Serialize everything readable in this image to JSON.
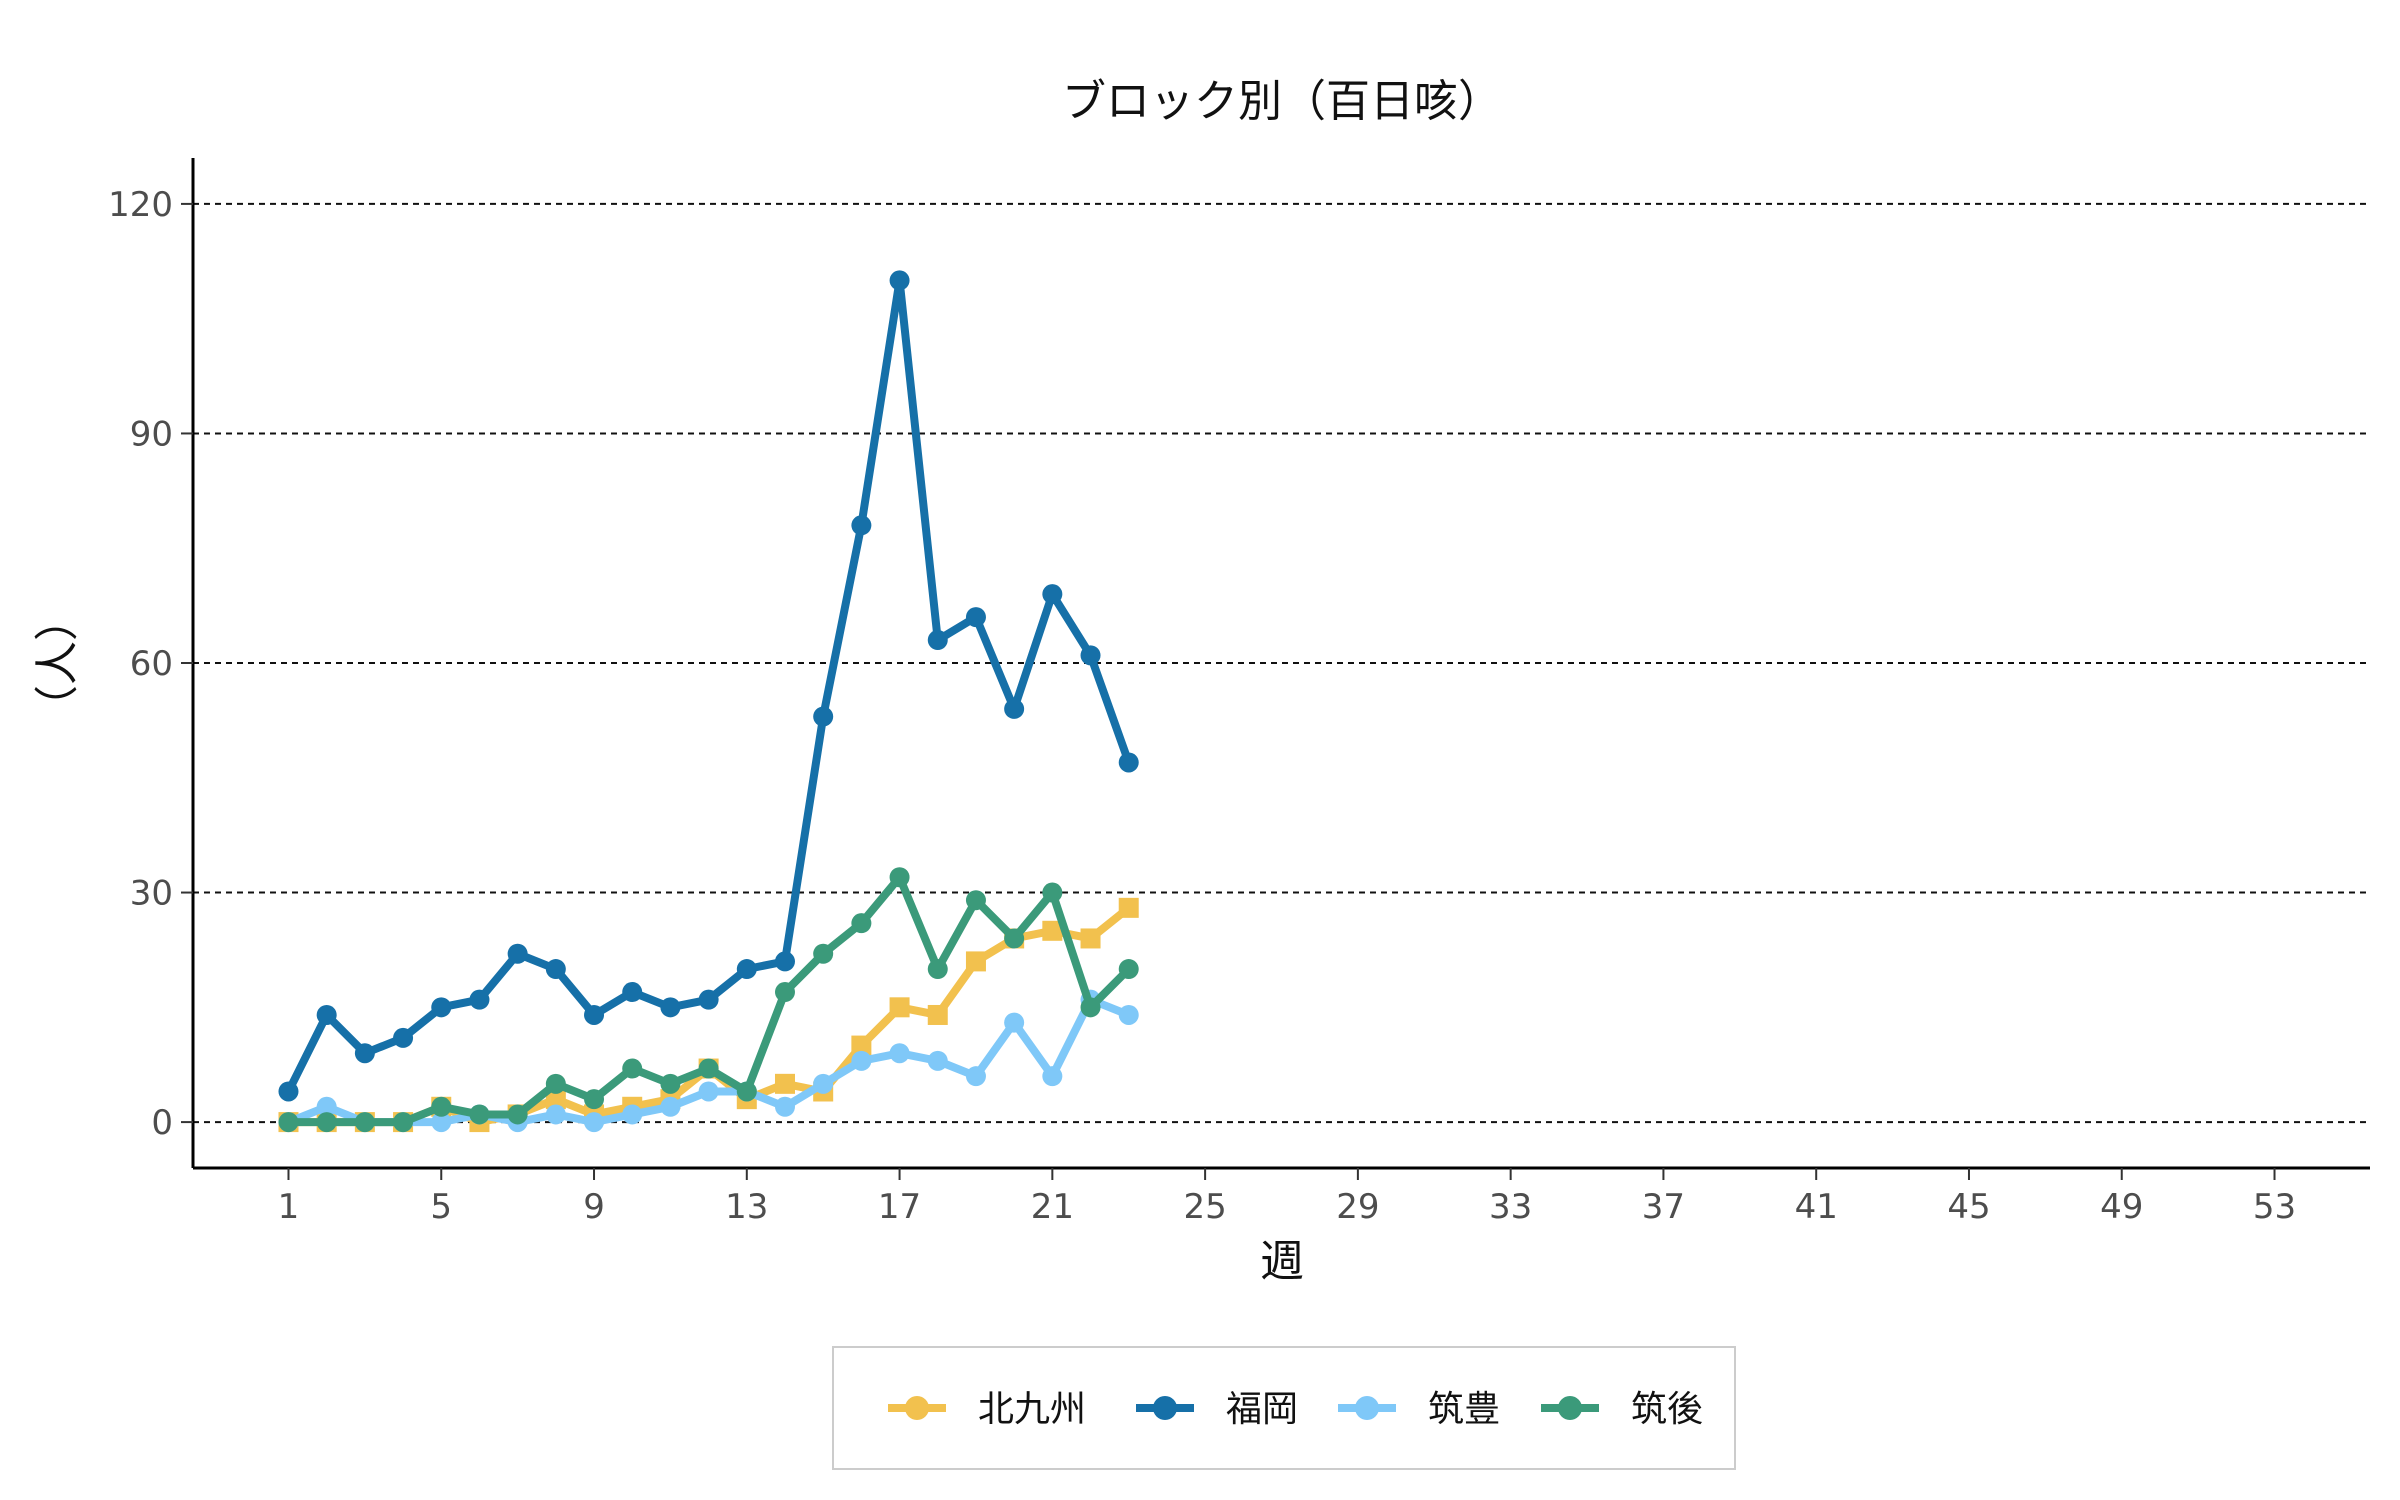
{
  "chart_data": {
    "type": "line",
    "title": "ブロック別（百日咳）",
    "xlabel": "週",
    "ylabel": "（人）",
    "x_ticks": [
      1,
      5,
      9,
      13,
      17,
      21,
      25,
      29,
      33,
      37,
      41,
      45,
      49,
      53
    ],
    "y_ticks": [
      0,
      30,
      60,
      90,
      120
    ],
    "xlim": [
      -1.5,
      55.5
    ],
    "ylim": [
      -6,
      126
    ],
    "grid": "horizontal dashed",
    "legend_position": "bottom",
    "x": [
      1,
      2,
      3,
      4,
      5,
      6,
      7,
      8,
      9,
      10,
      11,
      12,
      13,
      14,
      15,
      16,
      17,
      18,
      19,
      20,
      21,
      22,
      23
    ],
    "series": [
      {
        "name": "北九州",
        "color": "#f2c14e",
        "marker": "square",
        "values": [
          0,
          0,
          0,
          0,
          2,
          0,
          1,
          3,
          1,
          2,
          3,
          7,
          3,
          5,
          4,
          10,
          15,
          14,
          21,
          24,
          25,
          24,
          28
        ]
      },
      {
        "name": "福岡",
        "color": "#1670a8",
        "marker": "circle",
        "values": [
          4,
          14,
          9,
          11,
          15,
          16,
          22,
          20,
          14,
          17,
          15,
          16,
          20,
          21,
          53,
          78,
          110,
          63,
          66,
          54,
          69,
          61,
          47
        ]
      },
      {
        "name": "筑豊",
        "color": "#7fc8f8",
        "marker": "circle",
        "values": [
          0,
          2,
          0,
          0,
          0,
          1,
          0,
          1,
          0,
          1,
          2,
          4,
          4,
          2,
          5,
          8,
          9,
          8,
          6,
          13,
          6,
          16,
          14
        ]
      },
      {
        "name": "筑後",
        "color": "#3b9a7a",
        "marker": "circle",
        "values": [
          0,
          0,
          0,
          0,
          2,
          1,
          1,
          5,
          3,
          7,
          5,
          7,
          4,
          17,
          22,
          26,
          32,
          20,
          29,
          24,
          30,
          15,
          20
        ]
      }
    ]
  }
}
